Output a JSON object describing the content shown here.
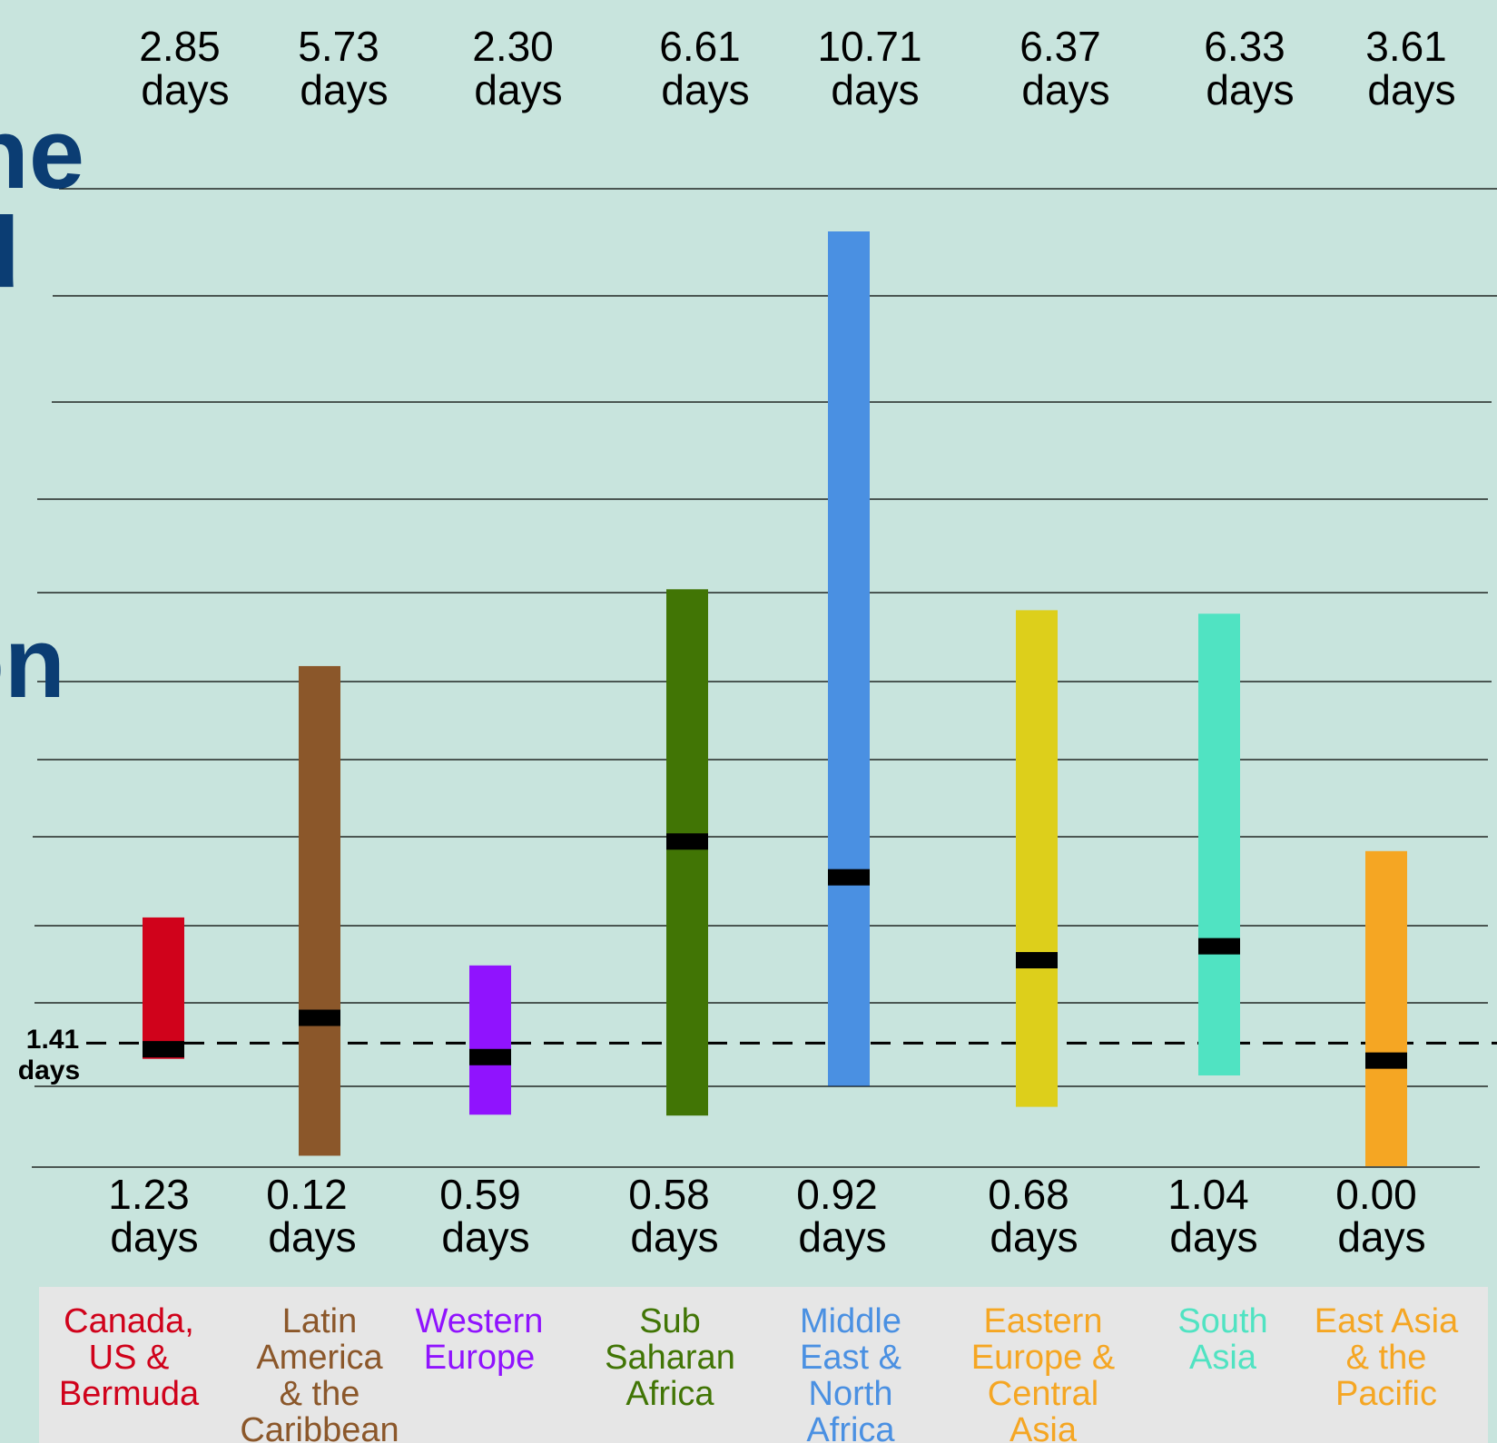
{
  "chart_data": {
    "type": "range-bar",
    "title_fragments": [
      "ne",
      "d",
      "on"
    ],
    "reference_line": {
      "value": 1.41,
      "label_value": "1.41",
      "label_unit": "days"
    },
    "unit": "days",
    "series": [
      {
        "name": "Canada, US & Bermuda",
        "label_lines": [
          "Canada,",
          "US &",
          "Bermuda"
        ],
        "color": "#d0021b",
        "max": 2.85,
        "min": 1.23,
        "median": 1.34,
        "max_label": "2.85",
        "min_label": "1.23"
      },
      {
        "name": "Latin America & the Caribbean",
        "label_lines": [
          "Latin",
          "America",
          "& the",
          "Caribbean"
        ],
        "color": "#8b572a",
        "max": 5.73,
        "min": 0.12,
        "median": 1.7,
        "max_label": "5.73",
        "min_label": "0.12"
      },
      {
        "name": "Western Europe",
        "label_lines": [
          "Western",
          "Europe"
        ],
        "color": "#9013fe",
        "max": 2.3,
        "min": 0.59,
        "median": 1.25,
        "max_label": "2.30",
        "min_label": "0.59"
      },
      {
        "name": "Sub Saharan Africa",
        "label_lines": [
          "Sub",
          "Saharan",
          "Africa"
        ],
        "color": "#417505",
        "max": 6.61,
        "min": 0.58,
        "median": 3.72,
        "max_label": "6.61",
        "min_label": "0.58"
      },
      {
        "name": "Middle East & North Africa",
        "label_lines": [
          "Middle",
          "East &",
          "North",
          "Africa"
        ],
        "color": "#4a90e2",
        "max": 10.71,
        "min": 0.92,
        "median": 3.31,
        "max_label": "10.71",
        "min_label": "0.92"
      },
      {
        "name": "Eastern Europe & Central Asia",
        "label_lines": [
          "Eastern",
          "Europe &",
          "Central",
          "Asia"
        ],
        "color": "#ddcf1b",
        "max": 6.37,
        "min": 0.68,
        "median": 2.36,
        "max_label": "6.37",
        "min_label": "0.68"
      },
      {
        "name": "South Asia",
        "label_lines": [
          "South",
          "Asia"
        ],
        "color": "#50e3c2",
        "max": 6.33,
        "min": 1.04,
        "median": 2.52,
        "max_label": "6.33",
        "min_label": "1.04"
      },
      {
        "name": "East Asia & the Pacific",
        "label_lines": [
          "East Asia",
          "& the",
          "Pacific"
        ],
        "color": "#f5a623",
        "max": 3.61,
        "min": 0.0,
        "median": 1.21,
        "max_label": "3.61",
        "min_label": "0.00",
        "label_color": "#f5a623"
      }
    ],
    "region_label_colors": [
      "#d0021b",
      "#8b572a",
      "#9013fe",
      "#417505",
      "#4a90e2",
      "#f5a623",
      "#50e3c2",
      "#f5a623"
    ],
    "median_color": "#000000",
    "grid": true,
    "background": "#c8e4dd",
    "label_panel_color": "#e6e6e6",
    "title_color": "#0b3d73"
  }
}
